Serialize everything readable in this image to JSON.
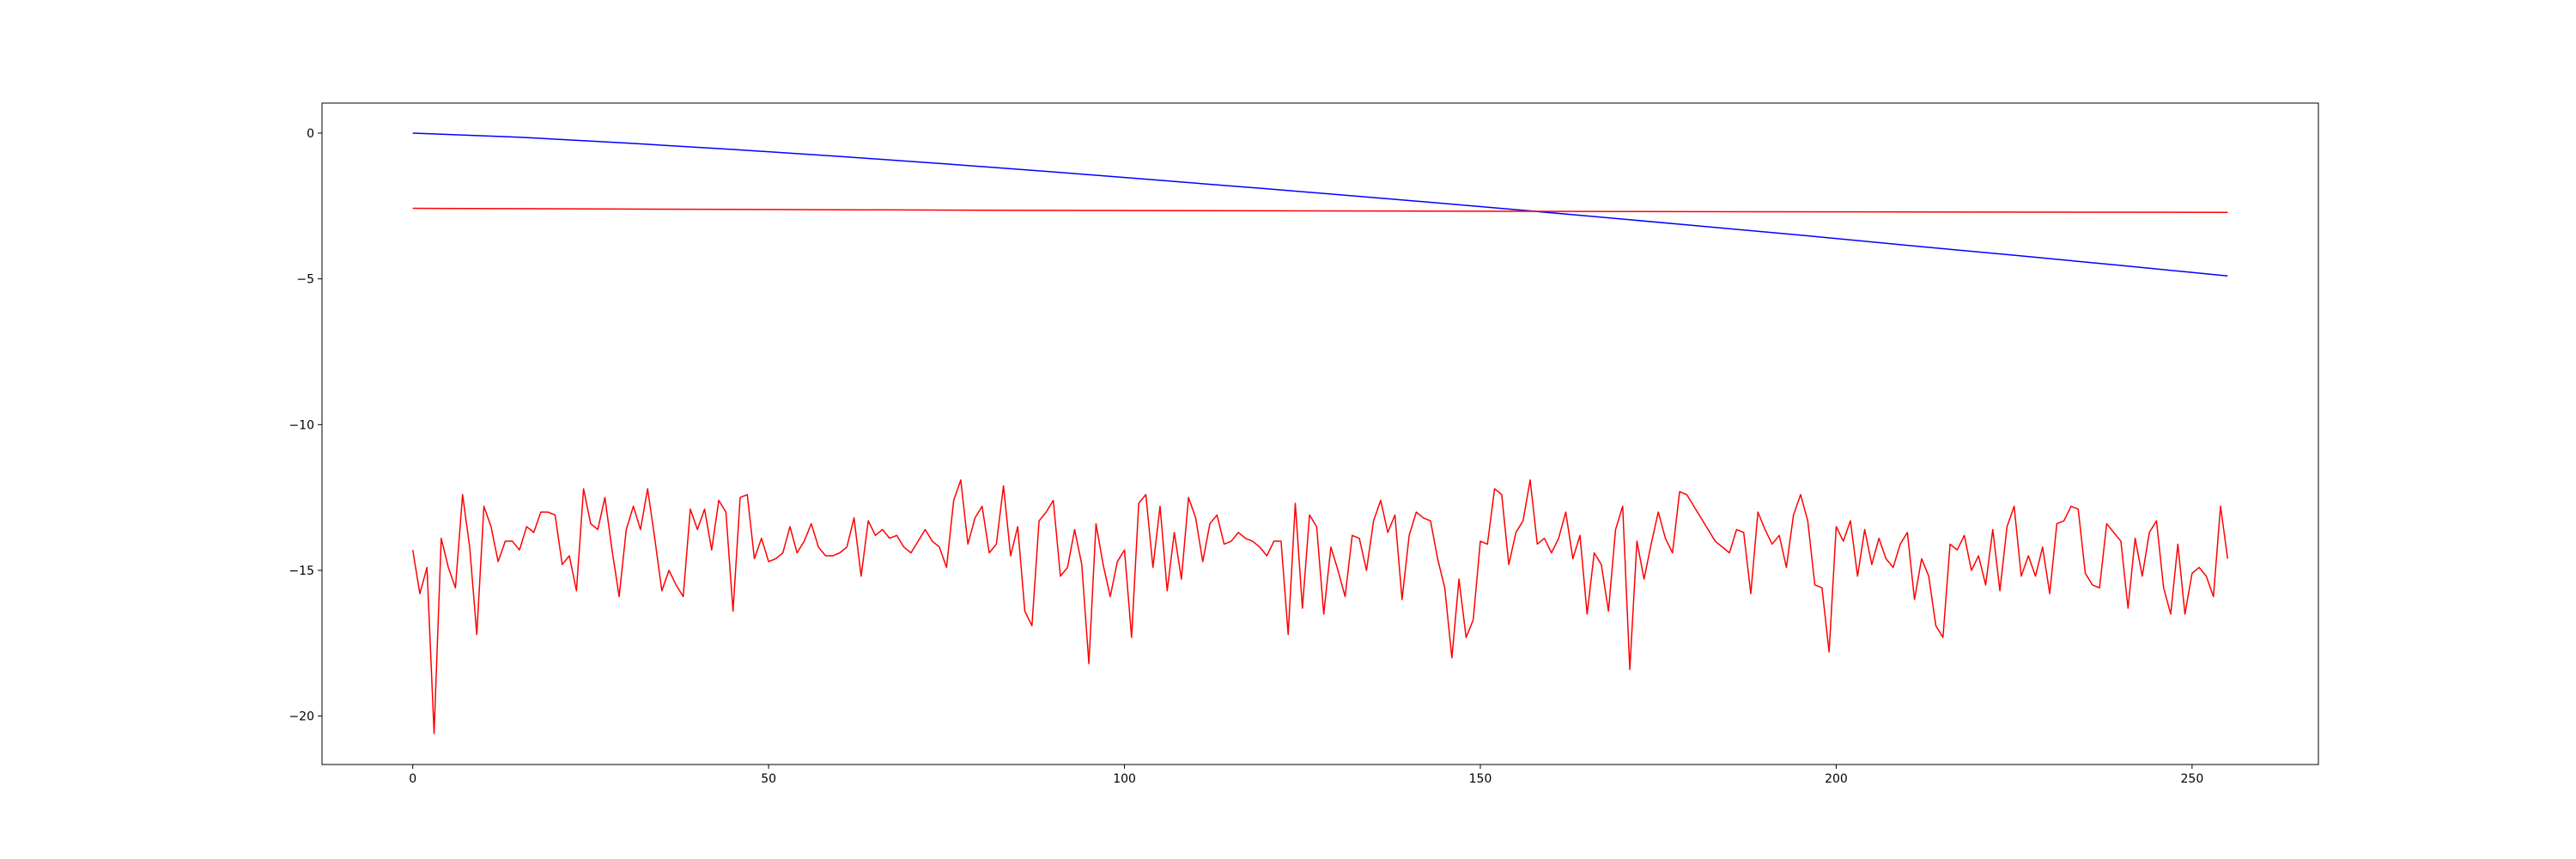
{
  "chart_data": {
    "type": "line",
    "xlim": [
      -12.75,
      267.75
    ],
    "ylim": [
      -21.66,
      1.03
    ],
    "xticks": [
      0,
      50,
      100,
      150,
      200,
      250
    ],
    "yticks": [
      {
        "value": 0,
        "label": "0"
      },
      {
        "value": -5,
        "label": "−5"
      },
      {
        "value": -10,
        "label": "−10"
      },
      {
        "value": -15,
        "label": "−15"
      },
      {
        "value": -20,
        "label": "−20"
      }
    ],
    "grid": false,
    "series": [
      {
        "color": "#0000ff",
        "x": [
          0,
          15,
          30,
          45,
          60,
          75,
          90,
          105,
          120,
          135,
          150,
          165,
          180,
          195,
          210,
          225,
          240,
          255
        ],
        "values": [
          0,
          -0.14,
          -0.34,
          -0.56,
          -0.8,
          -1.06,
          -1.33,
          -1.62,
          -1.91,
          -2.21,
          -2.52,
          -2.84,
          -3.17,
          -3.5,
          -3.85,
          -4.19,
          -4.54,
          -4.9
        ]
      },
      {
        "color": "#ff0000",
        "x": [
          0,
          85,
          170,
          255
        ],
        "values": [
          -2.58,
          -2.65,
          -2.69,
          -2.72
        ]
      },
      {
        "color": "#ff0000",
        "x": [
          0,
          1,
          2,
          3,
          4,
          5,
          6,
          7,
          8,
          9,
          10,
          11,
          12,
          13,
          14,
          15,
          16,
          17,
          18,
          19,
          20,
          21,
          22,
          23,
          24,
          25,
          26,
          27,
          28,
          29,
          30,
          31,
          32,
          33,
          34,
          35,
          36,
          37,
          38,
          39,
          40,
          41,
          42,
          43,
          44,
          45,
          46,
          47,
          48,
          49,
          50,
          51,
          52,
          53,
          54,
          55,
          56,
          57,
          58,
          59,
          60,
          61,
          62,
          63,
          64,
          65,
          66,
          67,
          68,
          69,
          70,
          71,
          72,
          73,
          74,
          75,
          76,
          77,
          78,
          79,
          80,
          81,
          82,
          83,
          84,
          85,
          86,
          87,
          88,
          89,
          90,
          91,
          92,
          93,
          94,
          95,
          96,
          97,
          98,
          99,
          100,
          101,
          102,
          103,
          104,
          105,
          106,
          107,
          108,
          109,
          110,
          111,
          112,
          113,
          114,
          115,
          116,
          117,
          118,
          119,
          120,
          121,
          122,
          123,
          124,
          125,
          126,
          127,
          128,
          129,
          130,
          131,
          132,
          133,
          134,
          135,
          136,
          137,
          138,
          139,
          140,
          141,
          142,
          143,
          144,
          145,
          146,
          147,
          148,
          149,
          150,
          151,
          152,
          153,
          154,
          155,
          156,
          157,
          158,
          159,
          160,
          161,
          162,
          163,
          164,
          165,
          166,
          167,
          168,
          169,
          170,
          171,
          172,
          173,
          174,
          175,
          176,
          177,
          178,
          179,
          180,
          181,
          182,
          183,
          184,
          185,
          186,
          187,
          188,
          189,
          190,
          191,
          192,
          193,
          194,
          195,
          196,
          197,
          198,
          199,
          200,
          201,
          202,
          203,
          204,
          205,
          206,
          207,
          208,
          209,
          210,
          211,
          212,
          213,
          214,
          215,
          216,
          217,
          218,
          219,
          220,
          221,
          222,
          223,
          224,
          225,
          226,
          227,
          228,
          229,
          230,
          231,
          232,
          233,
          234,
          235,
          236,
          237,
          238,
          239,
          240,
          241,
          242,
          243,
          244,
          245,
          246,
          247,
          248,
          249,
          250,
          251,
          252,
          253,
          254,
          255
        ],
        "values": [
          -14.3,
          -15.8,
          -14.9,
          -20.6,
          -13.9,
          -14.9,
          -15.6,
          -12.4,
          -14.2,
          -17.2,
          -12.8,
          -13.5,
          -14.7,
          -14.0,
          -14.0,
          -14.3,
          -13.5,
          -13.7,
          -13.0,
          -13.0,
          -13.1,
          -14.8,
          -14.5,
          -15.7,
          -12.2,
          -13.4,
          -13.6,
          -12.5,
          -14.3,
          -15.9,
          -13.6,
          -12.8,
          -13.6,
          -12.2,
          -13.9,
          -15.7,
          -15.0,
          -15.5,
          -15.9,
          -12.9,
          -13.6,
          -12.9,
          -14.3,
          -12.6,
          -13.0,
          -16.4,
          -12.5,
          -12.4,
          -14.6,
          -13.9,
          -14.7,
          -14.6,
          -14.4,
          -13.5,
          -14.4,
          -14.0,
          -13.4,
          -14.2,
          -14.5,
          -14.5,
          -14.4,
          -14.2,
          -13.2,
          -15.2,
          -13.3,
          -13.8,
          -13.6,
          -13.9,
          -13.8,
          -14.2,
          -14.4,
          -14.0,
          -13.6,
          -14.0,
          -14.2,
          -14.9,
          -12.6,
          -11.9,
          -14.1,
          -13.2,
          -12.8,
          -14.4,
          -14.1,
          -12.1,
          -14.5,
          -13.5,
          -16.4,
          -16.9,
          -13.3,
          -13.0,
          -12.6,
          -15.2,
          -14.9,
          -13.6,
          -14.8,
          -18.2,
          -13.4,
          -14.8,
          -15.9,
          -14.7,
          -14.3,
          -17.3,
          -12.7,
          -12.4,
          -14.9,
          -12.8,
          -15.7,
          -13.7,
          -15.3,
          -12.5,
          -13.2,
          -14.7,
          -13.4,
          -13.1,
          -14.1,
          -14.0,
          -13.7,
          -13.9,
          -14.0,
          -14.2,
          -14.5,
          -14.0,
          -14.0,
          -17.2,
          -12.7,
          -16.3,
          -13.1,
          -13.5,
          -16.5,
          -14.2,
          -15.0,
          -15.9,
          -13.8,
          -13.9,
          -15.0,
          -13.3,
          -12.6,
          -13.7,
          -13.1,
          -16.0,
          -13.8,
          -13.0,
          -13.2,
          -13.3,
          -14.6,
          -15.6,
          -18.0,
          -15.3,
          -17.3,
          -16.7,
          -14.0,
          -14.1,
          -12.2,
          -12.4,
          -14.8,
          -13.7,
          -13.3,
          -11.9,
          -14.1,
          -13.9,
          -14.4,
          -13.9,
          -13.0,
          -14.6,
          -13.8,
          -16.5,
          -14.4,
          -14.8,
          -16.4,
          -13.6,
          -12.8,
          -18.4,
          -14.0,
          -15.3,
          -14.1,
          -13.0,
          -13.9,
          -14.4,
          -12.3,
          -12.4,
          -12.8,
          -13.2,
          -13.6,
          -14.0,
          -14.2,
          -14.4,
          -13.6,
          -13.7,
          -15.8,
          -13.0,
          -13.6,
          -14.1,
          -13.8,
          -14.9,
          -13.1,
          -12.4,
          -13.3,
          -15.5,
          -15.6,
          -17.8,
          -13.5,
          -14.0,
          -13.3,
          -15.2,
          -13.6,
          -14.8,
          -13.9,
          -14.6,
          -14.9,
          -14.1,
          -13.7,
          -16.0,
          -14.6,
          -15.2,
          -16.9,
          -17.3,
          -14.1,
          -14.3,
          -13.8,
          -15.0,
          -14.5,
          -15.5,
          -13.6,
          -15.7,
          -13.5,
          -12.8,
          -15.2,
          -14.5,
          -15.2,
          -14.2,
          -15.8,
          -13.4,
          -13.3,
          -12.8,
          -12.9,
          -15.1,
          -15.5,
          -15.6,
          -13.4,
          -13.7,
          -14.0,
          -16.3,
          -13.9,
          -15.2,
          -13.7,
          -13.3,
          -15.6,
          -16.5,
          -14.1,
          -16.5,
          -15.1,
          -14.9,
          -15.2,
          -15.9,
          -12.8,
          -14.6
        ]
      }
    ]
  }
}
